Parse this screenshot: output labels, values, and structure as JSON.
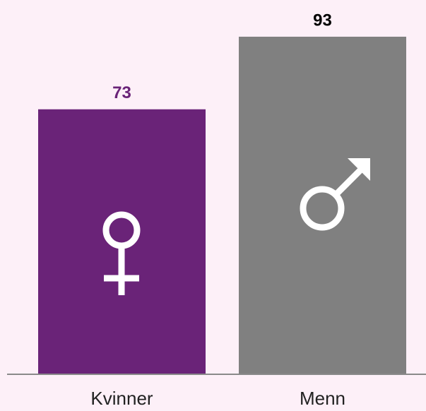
{
  "chart_data": {
    "type": "bar",
    "categories": [
      "Kvinner",
      "Menn"
    ],
    "values": [
      73,
      93
    ],
    "colors": [
      "#6a2378",
      "#808080"
    ],
    "label_colors": [
      "#6a2378",
      "#000000"
    ],
    "ylim": [
      0,
      100
    ]
  }
}
